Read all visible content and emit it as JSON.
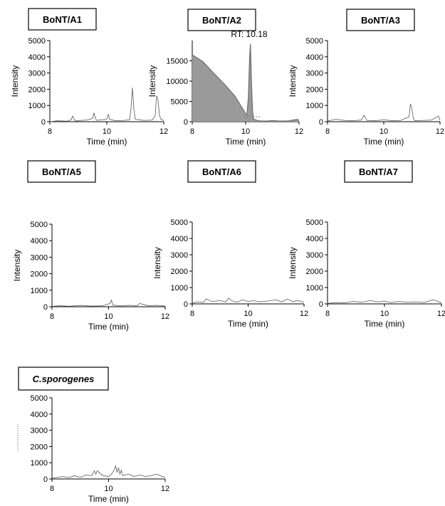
{
  "chart_data": [
    {
      "type": "line",
      "title": "BoNT/A1",
      "xlabel": "Time (min)",
      "ylabel": "Intensity",
      "xlim": [
        8,
        12
      ],
      "ylim": [
        0,
        5000
      ],
      "xticks": [
        "8",
        "10",
        "12"
      ],
      "yticks": [
        "0",
        "1000",
        "2000",
        "3000",
        "4000",
        "5000"
      ],
      "series": [
        {
          "x": [
            8.0,
            8.3,
            8.6,
            8.75,
            8.8,
            8.85,
            8.9,
            9.1,
            9.3,
            9.5,
            9.55,
            9.6,
            9.65,
            9.8,
            10.0,
            10.05,
            10.1,
            10.3,
            10.6,
            10.8,
            10.85,
            10.9,
            10.95,
            11.0,
            11.3,
            11.6,
            11.7,
            11.75,
            11.8,
            11.85,
            11.9,
            12.0
          ],
          "y": [
            0,
            60,
            30,
            120,
            350,
            160,
            40,
            80,
            100,
            200,
            550,
            200,
            80,
            120,
            150,
            450,
            150,
            60,
            80,
            120,
            800,
            2100,
            800,
            150,
            80,
            100,
            400,
            1600,
            1300,
            400,
            150,
            80
          ]
        }
      ]
    },
    {
      "type": "line",
      "title": "BoNT/A2",
      "xlabel": "Time (min)",
      "ylabel": "Intensity",
      "xlim": [
        8,
        12
      ],
      "ylim": [
        0,
        20000
      ],
      "xticks": [
        "8",
        "10",
        "12"
      ],
      "yticks": [
        "0",
        "5000",
        "10000",
        "15000"
      ],
      "annotations": [
        "RT: 10.18"
      ],
      "series": [
        {
          "x": [
            8.0,
            8.4,
            8.8,
            9.2,
            9.6,
            10.0,
            10.05,
            10.1,
            10.15,
            10.18,
            10.22,
            10.26,
            10.3,
            10.5,
            10.8,
            11.0,
            11.3,
            11.6,
            11.95,
            12.0
          ],
          "y": [
            16500,
            14800,
            12000,
            9300,
            6300,
            2000,
            1700,
            6000,
            16000,
            19200,
            9000,
            2500,
            600,
            200,
            150,
            300,
            150,
            200,
            600,
            100
          ]
        }
      ]
    },
    {
      "type": "line",
      "title": "BoNT/A3",
      "xlabel": "Time (min)",
      "ylabel": "Intensity",
      "xlim": [
        8,
        12
      ],
      "ylim": [
        0,
        5000
      ],
      "xticks": [
        "8",
        "10",
        "12"
      ],
      "yticks": [
        "0",
        "1000",
        "2000",
        "3000",
        "4000",
        "5000"
      ],
      "series": [
        {
          "x": [
            8.0,
            8.3,
            8.6,
            8.9,
            9.2,
            9.3,
            9.4,
            9.7,
            10.0,
            10.3,
            10.6,
            10.9,
            10.95,
            11.0,
            11.05,
            11.1,
            11.4,
            11.7,
            11.95,
            12.0
          ],
          "y": [
            50,
            150,
            80,
            60,
            100,
            400,
            80,
            60,
            120,
            60,
            80,
            300,
            1100,
            800,
            200,
            60,
            80,
            100,
            350,
            80
          ]
        }
      ]
    },
    {
      "type": "line",
      "title": "BoNT/A5",
      "xlabel": "Time (min)",
      "ylabel": "Intensity",
      "xlim": [
        8,
        12
      ],
      "ylim": [
        0,
        5000
      ],
      "xticks": [
        "8",
        "10",
        "12"
      ],
      "yticks": [
        "0",
        "1000",
        "2000",
        "3000",
        "4000",
        "5000"
      ],
      "series": [
        {
          "x": [
            8.0,
            8.3,
            8.6,
            9.0,
            9.4,
            9.8,
            10.05,
            10.1,
            10.15,
            10.4,
            10.7,
            11.0,
            11.1,
            11.4,
            11.7,
            12.0
          ],
          "y": [
            20,
            60,
            30,
            80,
            40,
            60,
            200,
            400,
            100,
            50,
            80,
            60,
            200,
            60,
            80,
            40
          ]
        }
      ]
    },
    {
      "type": "line",
      "title": "BoNT/A6",
      "xlabel": "Time (min)",
      "ylabel": "Intensity",
      "xlim": [
        8,
        12
      ],
      "ylim": [
        0,
        5000
      ],
      "xticks": [
        "8",
        "10",
        "12"
      ],
      "yticks": [
        "0",
        "1000",
        "2000",
        "3000",
        "4000",
        "5000"
      ],
      "series": [
        {
          "x": [
            8.0,
            8.2,
            8.4,
            8.5,
            8.7,
            9.0,
            9.2,
            9.3,
            9.4,
            9.6,
            9.8,
            10.0,
            10.2,
            10.4,
            10.7,
            11.0,
            11.2,
            11.4,
            11.6,
            11.8,
            12.0
          ],
          "y": [
            50,
            120,
            80,
            300,
            150,
            200,
            120,
            350,
            200,
            100,
            250,
            150,
            200,
            120,
            180,
            250,
            120,
            300,
            150,
            200,
            100
          ]
        }
      ]
    },
    {
      "type": "line",
      "title": "BoNT/A7",
      "xlabel": "Time (min)",
      "ylabel": "Intensity",
      "xlim": [
        8,
        12
      ],
      "ylim": [
        0,
        5000
      ],
      "xticks": [
        "8",
        "10",
        "12"
      ],
      "yticks": [
        "0",
        "1000",
        "2000",
        "3000",
        "4000",
        "5000"
      ],
      "series": [
        {
          "x": [
            8.0,
            8.3,
            8.6,
            8.9,
            9.2,
            9.5,
            9.8,
            10.0,
            10.2,
            10.5,
            10.8,
            11.1,
            11.4,
            11.7,
            11.8,
            12.0
          ],
          "y": [
            30,
            80,
            60,
            150,
            100,
            200,
            120,
            180,
            80,
            150,
            100,
            120,
            90,
            250,
            200,
            60
          ]
        }
      ]
    },
    {
      "type": "line",
      "title": "C.sporogenes",
      "xlabel": "Time (min)",
      "ylabel": "",
      "xlim": [
        8,
        12
      ],
      "ylim": [
        0,
        5000
      ],
      "xticks": [
        "8",
        "10",
        "12"
      ],
      "yticks": [
        "0",
        "1000",
        "2000",
        "3000",
        "4000",
        "5000"
      ],
      "series": [
        {
          "x": [
            8.0,
            8.2,
            8.4,
            8.6,
            8.8,
            9.0,
            9.2,
            9.4,
            9.5,
            9.55,
            9.6,
            9.8,
            10.0,
            10.1,
            10.2,
            10.25,
            10.3,
            10.35,
            10.4,
            10.45,
            10.5,
            10.7,
            10.9,
            11.1,
            11.3,
            11.5,
            11.7,
            11.9,
            12.0
          ],
          "y": [
            50,
            100,
            150,
            80,
            200,
            100,
            250,
            200,
            500,
            300,
            500,
            200,
            150,
            300,
            550,
            800,
            400,
            700,
            300,
            550,
            200,
            300,
            150,
            250,
            150,
            200,
            300,
            150,
            100
          ]
        }
      ]
    }
  ]
}
